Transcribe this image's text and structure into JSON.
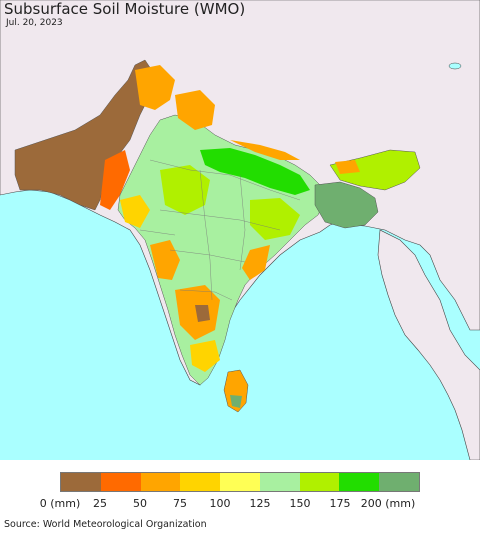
{
  "title": "Subsurface Soil Moisture (WMO)",
  "date": "Jul. 20, 2023",
  "legend": {
    "labels": [
      "0 (mm)",
      "25",
      "50",
      "75",
      "100",
      "125",
      "150",
      "175",
      "200 (mm)"
    ],
    "colors": [
      "#9c6a3a",
      "#ff6a00",
      "#ffa500",
      "#ffd400",
      "#ffff55",
      "#a8f0a0",
      "#b0f000",
      "#22dd00",
      "#6faf6f"
    ]
  },
  "colors": {
    "ocean": "#aaffff",
    "land_outside": "#f0e8ee",
    "border": "#333333"
  },
  "source": "Source: World Meteorological Organization"
}
